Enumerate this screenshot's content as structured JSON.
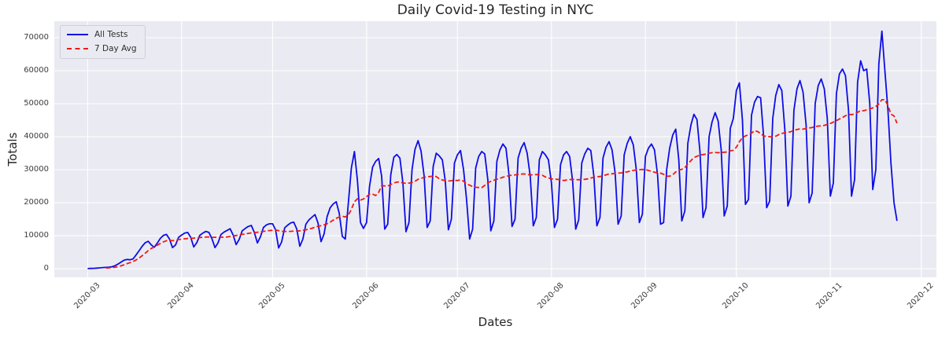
{
  "title": "Daily Covid-19 Testing in NYC",
  "x_label": "Dates",
  "y_label": "Totals",
  "colors": {
    "figure_bg": "#ffffff",
    "axes_bg": "#eaeaf2",
    "grid": "#ffffff",
    "all_tests_line": "#0d0de6",
    "seven_day_avg_line": "#ee1b12",
    "text": "#262626",
    "tick_text": "#3c3c3c"
  },
  "legend": {
    "items": [
      {
        "label": "All Tests",
        "color": "#0d0de6",
        "style": "solid"
      },
      {
        "label": "7 Day Avg",
        "color": "#ee1b12",
        "style": "dashed"
      }
    ]
  },
  "chart_data": {
    "type": "line",
    "title": "Daily Covid-19 Testing in NYC",
    "xlabel": "Dates",
    "ylabel": "Totals",
    "grid": true,
    "legend_position": "upper left",
    "start_date": "2020-03-01",
    "x_tick_labels": [
      "2020-03",
      "2020-04",
      "2020-05",
      "2020-06",
      "2020-07",
      "2020-08",
      "2020-09",
      "2020-10",
      "2020-11",
      "2020-12"
    ],
    "x_tick_day_offsets": [
      0,
      31,
      61,
      92,
      122,
      153,
      184,
      214,
      245,
      275
    ],
    "x_axis_days_range": [
      -11,
      280
    ],
    "y_ticks": [
      0,
      10000,
      20000,
      30000,
      40000,
      50000,
      60000,
      70000
    ],
    "ylim": [
      -2600,
      75000
    ],
    "series": [
      {
        "name": "All Tests",
        "color": "#0d0de6",
        "style": "solid",
        "values": [
          50,
          80,
          120,
          180,
          250,
          350,
          400,
          450,
          600,
          900,
          1400,
          2000,
          2600,
          2800,
          2700,
          3000,
          4200,
          5500,
          6800,
          7900,
          8300,
          7200,
          6500,
          7800,
          9200,
          10100,
          10400,
          9000,
          6400,
          7200,
          9500,
          10200,
          10800,
          11000,
          9500,
          6600,
          7900,
          10100,
          10800,
          11300,
          11000,
          9100,
          6400,
          7800,
          10400,
          11100,
          11600,
          12100,
          10200,
          7300,
          8900,
          11500,
          12200,
          12800,
          13100,
          11000,
          7800,
          9700,
          12500,
          13300,
          13600,
          13600,
          11800,
          6300,
          8100,
          12400,
          13200,
          13900,
          14100,
          12000,
          6800,
          9000,
          13500,
          14800,
          15600,
          16400,
          13900,
          8200,
          10500,
          15800,
          18500,
          19600,
          20300,
          16800,
          9800,
          9000,
          20000,
          30500,
          35500,
          26800,
          14000,
          12200,
          14000,
          25000,
          30800,
          32500,
          33400,
          28000,
          12000,
          13500,
          28500,
          33800,
          34600,
          33500,
          26000,
          11200,
          14000,
          30000,
          36200,
          38800,
          35600,
          28000,
          12500,
          14500,
          31000,
          35000,
          34200,
          33000,
          26500,
          11800,
          15000,
          32000,
          34500,
          35800,
          30000,
          21000,
          9000,
          12000,
          30500,
          34000,
          35500,
          34800,
          27000,
          11500,
          14500,
          32500,
          36000,
          37800,
          36500,
          28500,
          12800,
          15000,
          33500,
          36500,
          38200,
          35000,
          28000,
          13000,
          15500,
          33000,
          35500,
          34500,
          33000,
          26000,
          12500,
          15000,
          31500,
          34500,
          35500,
          34000,
          26500,
          12000,
          14800,
          32000,
          34800,
          36500,
          35800,
          28000,
          13000,
          15500,
          33500,
          36800,
          38500,
          36000,
          29000,
          13500,
          16000,
          34500,
          38000,
          40000,
          37500,
          30000,
          14000,
          16500,
          34000,
          36500,
          37800,
          36000,
          28500,
          13500,
          14000,
          30000,
          36500,
          40500,
          42300,
          33000,
          14500,
          17500,
          38000,
          43500,
          46800,
          45200,
          35500,
          15500,
          18500,
          40000,
          44500,
          47300,
          44800,
          36000,
          16000,
          19000,
          42500,
          45500,
          54000,
          56300,
          45000,
          19500,
          21000,
          46500,
          50500,
          52200,
          51800,
          40000,
          18500,
          20500,
          45500,
          52500,
          55800,
          54000,
          42000,
          19000,
          22000,
          48000,
          54500,
          57000,
          53500,
          43500,
          20000,
          23000,
          50000,
          55500,
          57500,
          54500,
          45500,
          22000,
          26000,
          53000,
          59000,
          60500,
          58500,
          48000,
          22000,
          27000,
          56500,
          63000,
          60000,
          60500,
          50000,
          24000,
          30000,
          62000,
          72000,
          60000,
          48000,
          32000,
          20000,
          14500
        ]
      },
      {
        "name": "7 Day Avg",
        "color": "#ee1b12",
        "style": "dashed",
        "derived": "7-day rolling mean of All Tests"
      }
    ]
  }
}
